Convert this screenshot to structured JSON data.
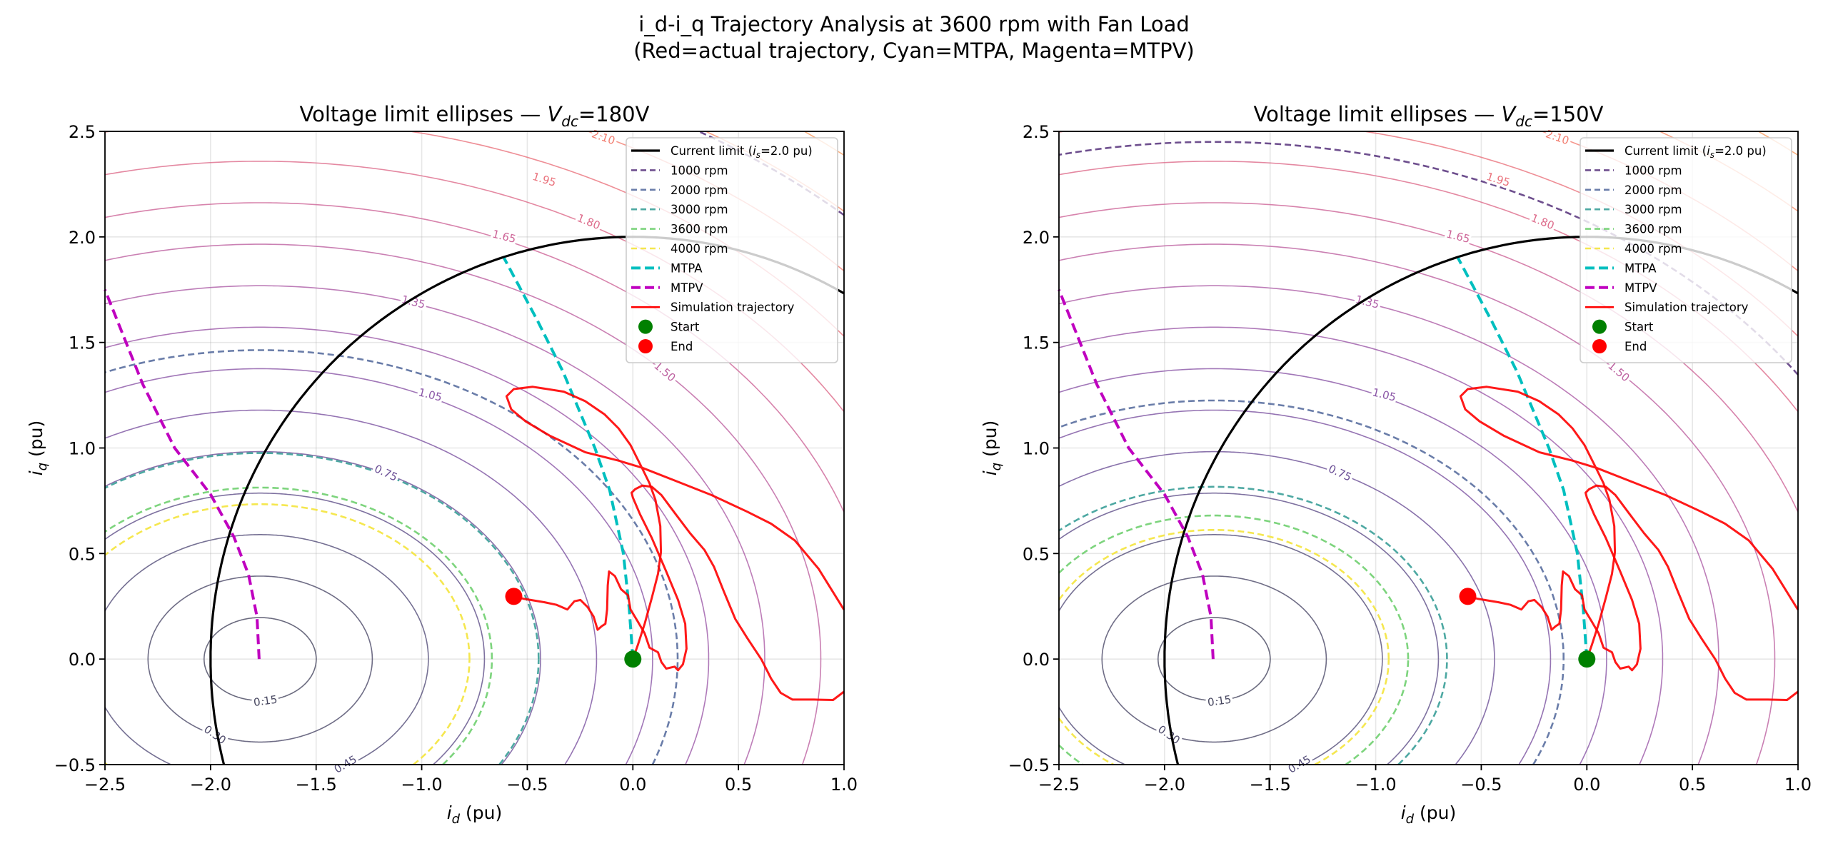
{
  "figure": {
    "suptitle_line1": "i_d-i_q Trajectory Analysis at 3600 rpm with Fan Load",
    "suptitle_line2": "(Red=actual trajectory, Cyan=MTPA, Magenta=MTPV)"
  },
  "chart_data": {
    "type": "line",
    "shared": {
      "xlim": [
        -2.5,
        1.0
      ],
      "ylim": [
        -0.5,
        2.5
      ],
      "xticks": [
        "−2.5",
        "−2.0",
        "−1.5",
        "−1.0",
        "−0.5",
        "0.0",
        "0.5",
        "1.0"
      ],
      "xtick_values": [
        -2.5,
        -2.0,
        -1.5,
        -1.0,
        -0.5,
        0.0,
        0.5,
        1.0
      ],
      "yticks": [
        "−0.5",
        "0.0",
        "0.5",
        "1.0",
        "1.5",
        "2.0",
        "2.5"
      ],
      "ytick_values": [
        -0.5,
        0.0,
        0.5,
        1.0,
        1.5,
        2.0,
        2.5
      ],
      "grid": true,
      "xlabel": {
        "var": "i",
        "sub": "d",
        "unit": " (pu)"
      },
      "ylabel": {
        "var": "i",
        "sub": "q",
        "unit": " (pu)"
      },
      "contour_center": [
        -1.765,
        0
      ],
      "contour_levels": [
        0.15,
        0.3,
        0.45,
        0.6,
        0.75,
        0.9,
        1.05,
        1.2,
        1.35,
        1.5,
        1.65,
        1.8,
        1.95,
        2.1,
        2.25,
        2.4
      ],
      "contour_colors": [
        "#46465f",
        "#4b4868",
        "#534c78",
        "#5e4d88",
        "#6b4f96",
        "#7a51a0",
        "#8a55a6",
        "#9b58a8",
        "#ad5ca6",
        "#bd60a0",
        "#cd6497",
        "#dd6a8a",
        "#ea727c",
        "#f27d70",
        "#f78c66",
        "#f99c60"
      ],
      "contour_labels": [
        "0.15",
        "0.30",
        "0.45",
        "0.75",
        "1.05",
        "1.35",
        "1.50",
        "1.65",
        "1.80",
        "1.95",
        "2.10"
      ],
      "current_limit": {
        "radius": 2.0,
        "color": "#000000"
      },
      "mtpa": {
        "color": "#00bfbf",
        "points": [
          [
            0,
            0
          ],
          [
            -0.017,
            0.235
          ],
          [
            -0.045,
            0.5
          ],
          [
            -0.11,
            0.8
          ],
          [
            -0.18,
            1.0
          ],
          [
            -0.33,
            1.36
          ],
          [
            -0.45,
            1.6
          ],
          [
            -0.61,
            1.9
          ]
        ]
      },
      "mtpv": {
        "color": "#bf00bf",
        "points": [
          [
            -1.77,
            0
          ],
          [
            -1.78,
            0.2
          ],
          [
            -1.82,
            0.4
          ],
          [
            -1.89,
            0.58
          ],
          [
            -2.0,
            0.78
          ],
          [
            -2.17,
            1.0
          ],
          [
            -2.32,
            1.3
          ],
          [
            -2.5,
            1.75
          ]
        ]
      },
      "trajectory": {
        "color": "#ff0000",
        "points": [
          [
            0,
            0
          ],
          [
            0.023,
            0.065
          ],
          [
            0.056,
            0.167
          ],
          [
            0.09,
            0.291
          ],
          [
            0.119,
            0.404
          ],
          [
            0.133,
            0.506
          ],
          [
            0.13,
            0.63
          ],
          [
            0.107,
            0.754
          ],
          [
            0.079,
            0.833
          ],
          [
            0.04,
            0.912
          ],
          [
            -0.011,
            1.014
          ],
          [
            -0.068,
            1.093
          ],
          [
            -0.135,
            1.16
          ],
          [
            -0.226,
            1.222
          ],
          [
            -0.327,
            1.267
          ],
          [
            -0.474,
            1.29
          ],
          [
            -0.564,
            1.279
          ],
          [
            -0.598,
            1.245
          ],
          [
            -0.576,
            1.183
          ],
          [
            -0.508,
            1.126
          ],
          [
            -0.395,
            1.059
          ],
          [
            -0.226,
            0.98
          ],
          [
            -0.068,
            0.94
          ],
          [
            0.045,
            0.906
          ],
          [
            0.203,
            0.844
          ],
          [
            0.372,
            0.777
          ],
          [
            0.542,
            0.698
          ],
          [
            0.655,
            0.641
          ],
          [
            0.767,
            0.562
          ],
          [
            0.88,
            0.427
          ],
          [
            0.999,
            0.235
          ],
          [
            1.1,
            0.05
          ],
          [
            1.1,
            -0.12
          ],
          [
            0.999,
            -0.155
          ],
          [
            0.948,
            -0.194
          ],
          [
            0.858,
            -0.192
          ],
          [
            0.756,
            -0.192
          ],
          [
            0.7,
            -0.16
          ],
          [
            0.655,
            -0.093
          ],
          [
            0.609,
            -0.002
          ],
          [
            0.542,
            0.099
          ],
          [
            0.485,
            0.19
          ],
          [
            0.429,
            0.325
          ],
          [
            0.384,
            0.438
          ],
          [
            0.339,
            0.517
          ],
          [
            0.271,
            0.596
          ],
          [
            0.203,
            0.686
          ],
          [
            0.135,
            0.777
          ],
          [
            0.09,
            0.816
          ],
          [
            0.045,
            0.822
          ],
          [
            0.011,
            0.805
          ],
          [
            -0.006,
            0.788
          ],
          [
            0,
            0.765
          ],
          [
            0.034,
            0.686
          ],
          [
            0.09,
            0.573
          ],
          [
            0.158,
            0.415
          ],
          [
            0.214,
            0.28
          ],
          [
            0.248,
            0.167
          ],
          [
            0.254,
            0.049
          ],
          [
            0.237,
            -0.025
          ],
          [
            0.214,
            -0.053
          ],
          [
            0.198,
            -0.036
          ],
          [
            0.158,
            -0.045
          ],
          [
            0.135,
            -0.014
          ],
          [
            0.119,
            0.032
          ],
          [
            0.079,
            0.054
          ],
          [
            0.056,
            0.122
          ],
          [
            0.023,
            0.178
          ],
          [
            -0.011,
            0.235
          ],
          [
            -0.023,
            0.302
          ],
          [
            -0.056,
            0.331
          ],
          [
            -0.085,
            0.393
          ],
          [
            -0.113,
            0.415
          ],
          [
            -0.119,
            0.348
          ],
          [
            -0.122,
            0.235
          ],
          [
            -0.13,
            0.167
          ],
          [
            -0.147,
            0.156
          ],
          [
            -0.167,
            0.139
          ],
          [
            -0.186,
            0.201
          ],
          [
            -0.214,
            0.246
          ],
          [
            -0.248,
            0.28
          ],
          [
            -0.277,
            0.274
          ],
          [
            -0.31,
            0.235
          ],
          [
            -0.361,
            0.257
          ],
          [
            -0.418,
            0.269
          ],
          [
            -0.519,
            0.286
          ],
          [
            -0.564,
            0.297
          ]
        ]
      },
      "start": {
        "point": [
          0,
          0
        ],
        "color": "#008000"
      },
      "end": {
        "point": [
          -0.564,
          0.297
        ],
        "color": "#ff0000"
      },
      "legend": {
        "placement": "top-right",
        "items": [
          {
            "label_pre": "Current limit (",
            "label_var": "i",
            "label_sub": "s",
            "label_post": "=2.0 pu)",
            "color": "#000000",
            "style": "solid"
          },
          {
            "label": "1000 rpm",
            "color": "#5e3c82",
            "style": "dashed"
          },
          {
            "label": "2000 rpm",
            "color": "#5a6fa0",
            "style": "dashed"
          },
          {
            "label": "3000 rpm",
            "color": "#3a9f98",
            "style": "dashed"
          },
          {
            "label": "3600 rpm",
            "color": "#6fcf6f",
            "style": "dashed"
          },
          {
            "label": "4000 rpm",
            "color": "#f4e43c",
            "style": "dashed"
          },
          {
            "label": "MTPA",
            "color": "#00bfbf",
            "style": "dashed-thick"
          },
          {
            "label": "MTPV",
            "color": "#bf00bf",
            "style": "dashed-thick"
          },
          {
            "label": "Simulation trajectory",
            "color": "#ff0000",
            "style": "solid-thin"
          },
          {
            "label": "Start",
            "color": "#008000",
            "style": "marker"
          },
          {
            "label": "End",
            "color": "#ff0000",
            "style": "marker"
          }
        ]
      }
    },
    "panels": [
      {
        "title_text": "Voltage limit ellipses — ",
        "title_var": "V",
        "title_sub": "dc",
        "title_value": "=180V",
        "speed_curves": [
          {
            "rpm": 1000,
            "level": 2.24
          },
          {
            "rpm": 2000,
            "level": 1.117
          },
          {
            "rpm": 3000,
            "level": 0.745
          },
          {
            "rpm": 3600,
            "level": 0.62
          },
          {
            "rpm": 4000,
            "level": 0.56
          }
        ]
      },
      {
        "title_text": "Voltage limit ellipses — ",
        "title_var": "V",
        "title_sub": "dc",
        "title_value": "=150V",
        "speed_curves": [
          {
            "rpm": 1000,
            "level": 1.87
          },
          {
            "rpm": 2000,
            "level": 0.935
          },
          {
            "rpm": 3000,
            "level": 0.623
          },
          {
            "rpm": 3600,
            "level": 0.519
          },
          {
            "rpm": 4000,
            "level": 0.467
          }
        ]
      }
    ]
  }
}
